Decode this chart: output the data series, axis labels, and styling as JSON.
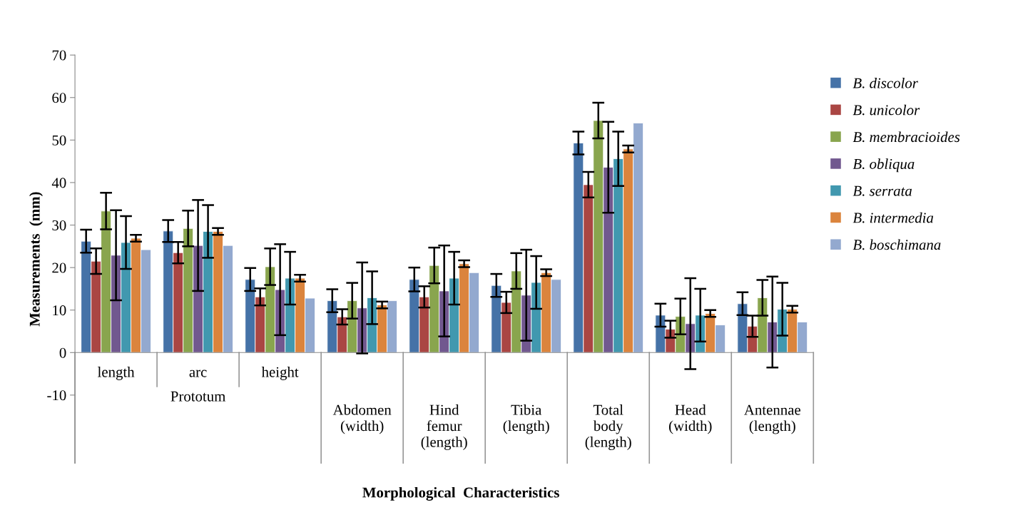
{
  "chart_data": {
    "type": "bar",
    "xlabel": "Morphological  Characteristics",
    "ylabel": "Measurements  (mm)",
    "categories": [
      "length",
      "arc",
      "height",
      "Abdomen\n(width)",
      "Hind\nfemur\n(length)",
      "Tibia\n(length)",
      "Total\nbody\n(length)",
      "Head\n(width)",
      "Antennae\n(length)"
    ],
    "annotations": [
      "Prototum"
    ],
    "ylim": [
      -26,
      70
    ],
    "yticks": [
      -10,
      0,
      10,
      20,
      30,
      40,
      50,
      60,
      70
    ],
    "legend": "right",
    "series": [
      {
        "name": "B. discolor",
        "color": "#4572a7",
        "values": [
          26.2,
          28.6,
          17.2,
          12.2,
          17.2,
          15.8,
          49.3,
          8.8,
          11.5
        ],
        "errors": [
          2.7,
          2.6,
          2.7,
          2.7,
          2.8,
          2.7,
          2.7,
          2.7,
          2.7
        ]
      },
      {
        "name": "B. unicolor",
        "color": "#aa4643",
        "values": [
          21.5,
          23.5,
          13.1,
          8.4,
          13.1,
          11.8,
          39.5,
          5.5,
          6.2
        ],
        "errors": [
          3,
          2.5,
          2,
          1.8,
          2.5,
          2.5,
          3,
          2,
          2.5
        ]
      },
      {
        "name": "B. membracioides",
        "color": "#89a54e",
        "values": [
          33.3,
          29.2,
          20.2,
          12.2,
          20.5,
          19.2,
          54.6,
          8.5,
          12.9
        ],
        "errors": [
          4.3,
          4.2,
          4.3,
          4.2,
          4.2,
          4.2,
          4.2,
          4.2,
          4.2
        ]
      },
      {
        "name": "B. obliqua",
        "color": "#71588f",
        "values": [
          22.9,
          25.2,
          14.8,
          10.5,
          14.5,
          13.5,
          43.6,
          6.8,
          7.2
        ],
        "errors": [
          10.6,
          10.7,
          10.7,
          10.7,
          10.7,
          10.7,
          10.7,
          10.7,
          10.7
        ]
      },
      {
        "name": "B. serrata",
        "color": "#4198af",
        "values": [
          25.9,
          28.5,
          17.5,
          12.9,
          17.5,
          16.5,
          45.6,
          8.8,
          10.2
        ],
        "errors": [
          6.2,
          6.2,
          6.2,
          6.2,
          6.2,
          6.2,
          6.4,
          6.2,
          6.2
        ]
      },
      {
        "name": "B. intermedia",
        "color": "#db843d",
        "values": [
          26.9,
          28.5,
          17.5,
          11.2,
          20.9,
          18.8,
          47.9,
          9.2,
          10.2
        ],
        "errors": [
          0.8,
          0.8,
          0.8,
          0.8,
          0.8,
          0.8,
          0.8,
          0.8,
          0.8
        ]
      },
      {
        "name": "B. boschimana",
        "color": "#93a9cf",
        "values": [
          24.2,
          25.2,
          12.8,
          12.2,
          18.8,
          17.2,
          54.0,
          6.5,
          7.2
        ]
      }
    ]
  }
}
